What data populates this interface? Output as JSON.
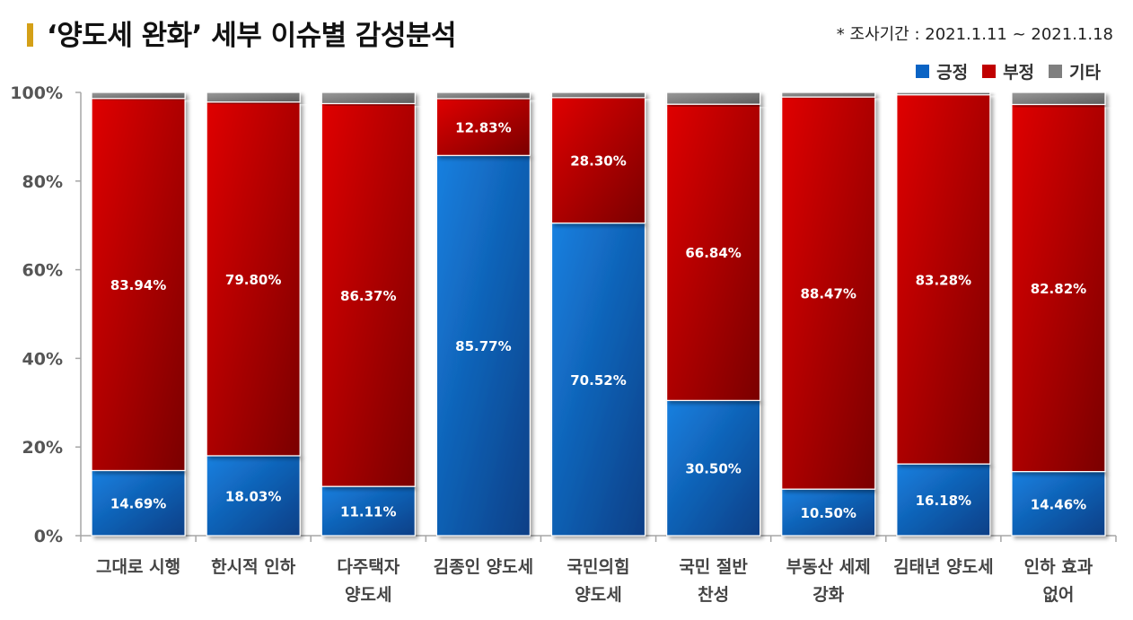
{
  "title": "‘양도세 완화’ 세부 이슈별 감성분석",
  "survey_period": "* 조사기간 : 2021.1.11 ~ 2021.1.18",
  "colors": {
    "positive": "#0a63c4",
    "negative": "#c00000",
    "other": "#7f7f7f",
    "title_accent": "#d4a017"
  },
  "chart_data": {
    "type": "bar",
    "stacked": true,
    "percent": true,
    "categories": [
      [
        "그대로 시행"
      ],
      [
        "한시적 인하"
      ],
      [
        "다주택자",
        "양도세"
      ],
      [
        "김종인 양도세"
      ],
      [
        "국민의힘",
        "양도세"
      ],
      [
        "국민 절반",
        "찬성"
      ],
      [
        "부동산 세제",
        "강화"
      ],
      [
        "김태년 양도세"
      ],
      [
        "인하 효과",
        "없어"
      ]
    ],
    "series": [
      {
        "name": "긍정",
        "values": [
          14.69,
          18.03,
          11.11,
          85.77,
          70.52,
          30.5,
          10.5,
          16.18,
          14.46
        ],
        "labels": [
          "14.69%",
          "18.03%",
          "11.11%",
          "85.77%",
          "70.52%",
          "30.50%",
          "10.50%",
          "16.18%",
          "14.46%"
        ]
      },
      {
        "name": "부정",
        "values": [
          83.94,
          79.8,
          86.37,
          12.83,
          28.3,
          66.84,
          88.47,
          83.28,
          82.82
        ],
        "labels": [
          "83.94%",
          "79.80%",
          "86.37%",
          "12.83%",
          "28.30%",
          "66.84%",
          "88.47%",
          "83.28%",
          "82.82%"
        ]
      },
      {
        "name": "기타",
        "values": [
          1.37,
          2.17,
          2.52,
          1.4,
          1.18,
          2.66,
          1.03,
          0.54,
          2.72
        ]
      }
    ],
    "yticks": [
      "0%",
      "20%",
      "40%",
      "60%",
      "80%",
      "100%"
    ],
    "ylim": [
      0,
      100
    ],
    "legend_position": "top-right",
    "grid": false
  }
}
